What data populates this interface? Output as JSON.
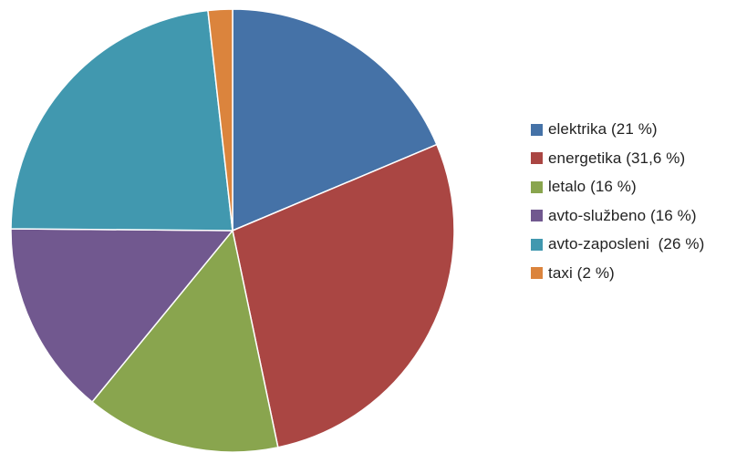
{
  "chart_data": {
    "type": "pie",
    "title": "",
    "categories": [
      "elektrika",
      "energetika",
      "letalo",
      "avto-službeno",
      "avto-zaposleni",
      "taxi"
    ],
    "values": [
      21,
      31.6,
      16,
      16,
      26,
      2
    ],
    "series": [
      {
        "values": [
          21,
          31.6,
          16,
          16,
          26,
          2
        ]
      }
    ],
    "colors": [
      "#4572a7",
      "#aa4643",
      "#89a54e",
      "#71588f",
      "#4198af",
      "#db843d"
    ],
    "legend": {
      "position": "right",
      "entries": [
        "elektrika (21 %)",
        "energetika (31,6 %)",
        "letalo (16 %)",
        "avto-službeno (16 %)",
        "avto-zaposleni  (26 %)",
        "taxi (2 %)"
      ]
    },
    "start_direction": "top",
    "direction": "clockwise"
  }
}
